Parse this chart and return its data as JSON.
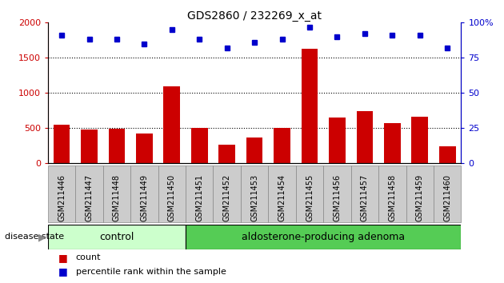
{
  "title": "GDS2860 / 232269_x_at",
  "categories": [
    "GSM211446",
    "GSM211447",
    "GSM211448",
    "GSM211449",
    "GSM211450",
    "GSM211451",
    "GSM211452",
    "GSM211453",
    "GSM211454",
    "GSM211455",
    "GSM211456",
    "GSM211457",
    "GSM211458",
    "GSM211459",
    "GSM211460"
  ],
  "counts": [
    540,
    470,
    480,
    420,
    1090,
    500,
    255,
    365,
    500,
    1630,
    650,
    740,
    560,
    660,
    230
  ],
  "percentiles": [
    91,
    88,
    88,
    85,
    95,
    88,
    82,
    86,
    88,
    97,
    90,
    92,
    91,
    91,
    82
  ],
  "bar_color": "#cc0000",
  "dot_color": "#0000cc",
  "ylim_left": [
    0,
    2000
  ],
  "ylim_right": [
    0,
    100
  ],
  "yticks_left": [
    0,
    500,
    1000,
    1500,
    2000
  ],
  "yticks_right": [
    0,
    25,
    50,
    75,
    100
  ],
  "ytick_labels_right": [
    "0",
    "25",
    "50",
    "75",
    "100%"
  ],
  "grid_values": [
    500,
    1000,
    1500
  ],
  "n_control": 5,
  "n_total": 15,
  "control_label": "control",
  "adenoma_label": "aldosterone-producing adenoma",
  "disease_state_label": "disease state",
  "legend_count_label": "count",
  "legend_percentile_label": "percentile rank within the sample",
  "control_color": "#ccffcc",
  "adenoma_color": "#55cc55",
  "tick_bg_color": "#cccccc",
  "background_color": "#ffffff"
}
